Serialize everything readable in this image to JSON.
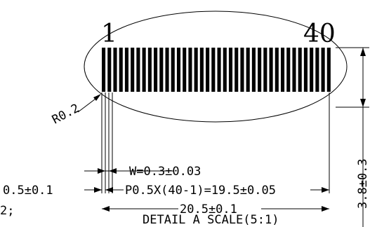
{
  "pin_first_label": "1",
  "pin_last_label": "40",
  "pin_count": 40,
  "radius_label": "R0.2",
  "height_label": "3.8±0.3",
  "width_label": "W=0.3±0.03",
  "offset_label": "0.5±0.1",
  "pitch_label": "P0.5X(40-1)=19.5±0.05",
  "overall_label": "20.5±0.1",
  "cut_text": "2;",
  "caption": "DETAIL A SCALE(5:1)"
}
